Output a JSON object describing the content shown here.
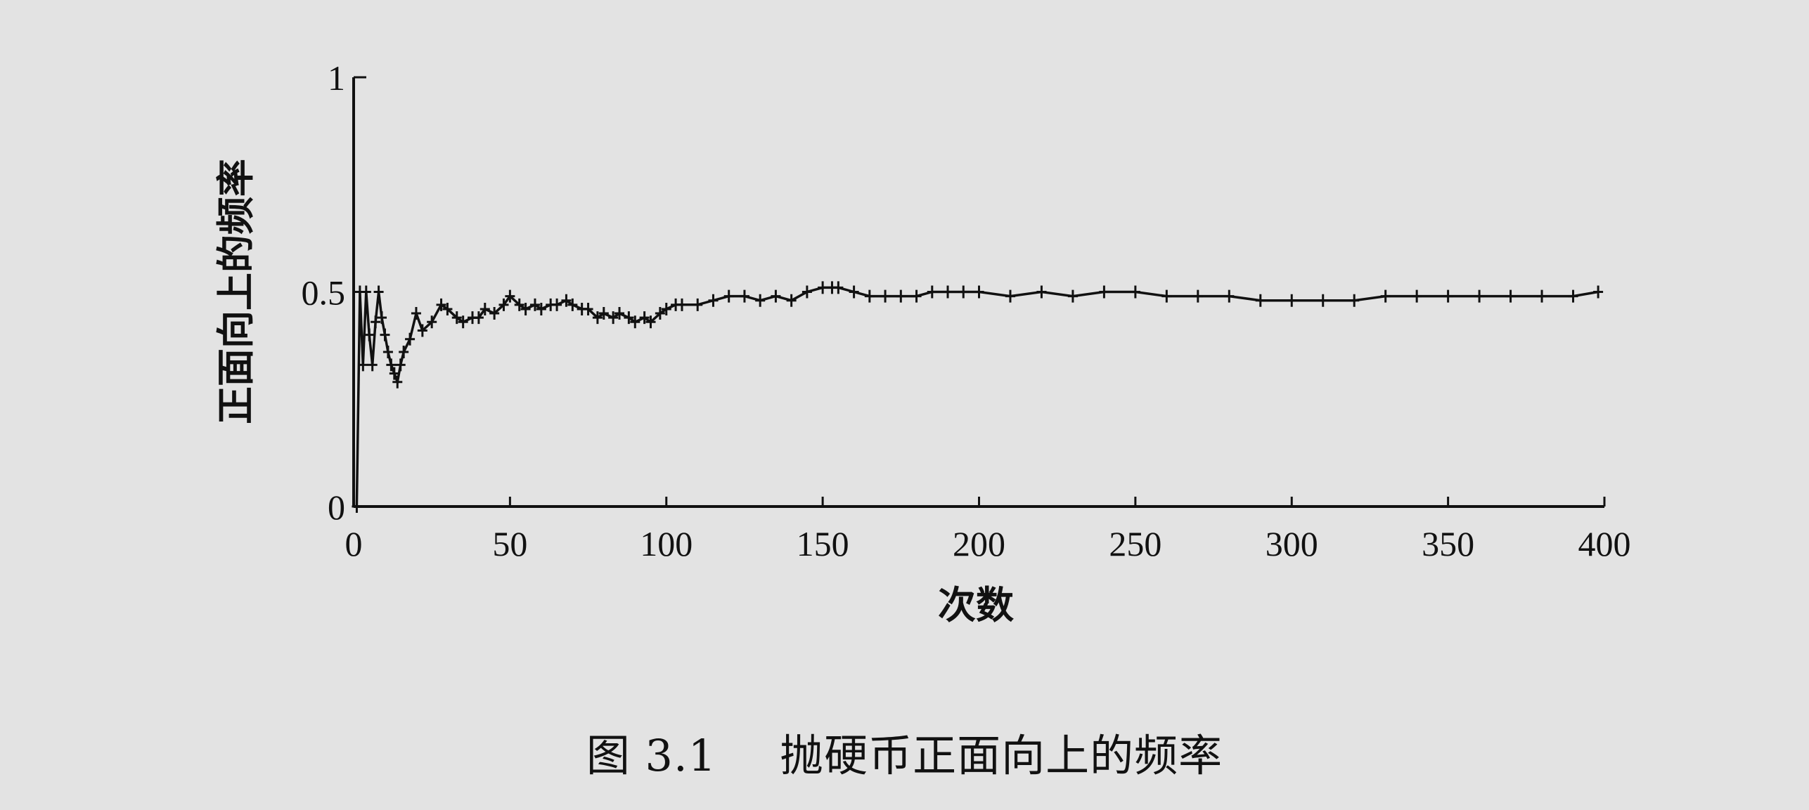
{
  "caption": {
    "figure_number": "图 3.1",
    "title": "抛硬币正面向上的频率"
  },
  "chart_data": {
    "type": "line",
    "title": "",
    "xlabel": "次数",
    "ylabel": "正面向上的频率",
    "xlim": [
      0,
      400
    ],
    "ylim": [
      0,
      1
    ],
    "xticks": [
      0,
      50,
      100,
      150,
      200,
      250,
      300,
      350,
      400
    ],
    "xtick_labels": [
      "0",
      "50",
      "100",
      "150",
      "200",
      "250",
      "300",
      "350",
      "400"
    ],
    "yticks": [
      0,
      0.5,
      1
    ],
    "ytick_labels": [
      "0",
      "0.5",
      "1"
    ],
    "grid": false,
    "legend": false,
    "marker": "+",
    "line_color": "#111111",
    "series": [
      {
        "x": [
          1,
          2,
          3,
          4,
          5,
          6,
          7,
          8,
          9,
          10,
          11,
          12,
          13,
          14,
          15,
          16,
          18,
          20,
          22,
          25,
          28,
          30,
          33,
          35,
          38,
          40,
          42,
          45,
          48,
          50,
          53,
          55,
          58,
          60,
          63,
          65,
          68,
          70,
          73,
          75,
          78,
          80,
          83,
          85,
          88,
          90,
          93,
          95,
          98,
          100,
          103,
          105,
          110,
          115,
          120,
          125,
          130,
          135,
          140,
          145,
          150,
          153,
          155,
          160,
          165,
          170,
          175,
          180,
          185,
          190,
          195,
          200,
          210,
          220,
          230,
          240,
          250,
          260,
          270,
          280,
          290,
          300,
          310,
          320,
          330,
          340,
          350,
          360,
          370,
          380,
          390,
          398
        ],
        "y": [
          0.0,
          0.5,
          0.33,
          0.5,
          0.4,
          0.33,
          0.43,
          0.5,
          0.44,
          0.4,
          0.36,
          0.33,
          0.31,
          0.29,
          0.33,
          0.36,
          0.39,
          0.45,
          0.41,
          0.43,
          0.47,
          0.46,
          0.44,
          0.43,
          0.44,
          0.44,
          0.46,
          0.45,
          0.47,
          0.49,
          0.47,
          0.46,
          0.47,
          0.46,
          0.47,
          0.47,
          0.48,
          0.47,
          0.46,
          0.46,
          0.44,
          0.45,
          0.44,
          0.45,
          0.44,
          0.43,
          0.44,
          0.43,
          0.45,
          0.46,
          0.47,
          0.47,
          0.47,
          0.48,
          0.49,
          0.49,
          0.48,
          0.49,
          0.48,
          0.5,
          0.51,
          0.51,
          0.51,
          0.5,
          0.49,
          0.49,
          0.49,
          0.49,
          0.5,
          0.5,
          0.5,
          0.5,
          0.49,
          0.5,
          0.49,
          0.5,
          0.5,
          0.49,
          0.49,
          0.49,
          0.48,
          0.48,
          0.48,
          0.48,
          0.49,
          0.49,
          0.49,
          0.49,
          0.49,
          0.49,
          0.49,
          0.5
        ]
      }
    ]
  }
}
